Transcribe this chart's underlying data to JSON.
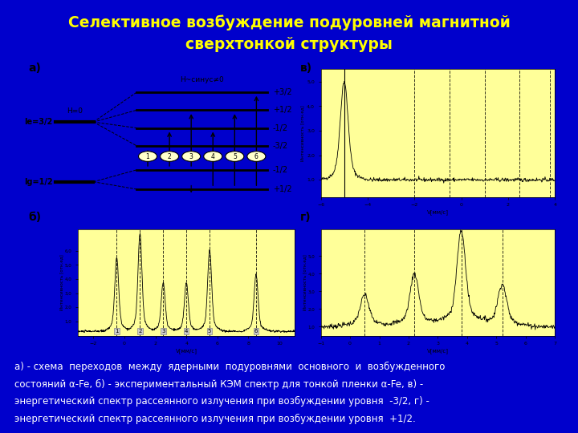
{
  "title_line1": "Селективное возбуждение подуровней магнитной",
  "title_line2": "сверхтонкой структуры",
  "title_color": "yellow",
  "bg_color": "#0000CC",
  "panel_bg": "#FFFF99",
  "caption_line1": "а) - схема  переходов  между  ядерными  подуровнями  основного  и  возбужденного",
  "caption_line2": "состояний α-Fe, б) - экспериментальный КЭМ спектр для тонкой пленки α-Fe, в) -",
  "caption_line3": "энергетический спектр рассеянного излучения при возбуждении уровня  -3/2, г) -",
  "caption_line4": "энергетический спектр рассеянного излучения при возбуждении уровня  +1/2.",
  "label_a": "а)",
  "label_b": "б)",
  "label_v": "в)",
  "label_g": "г)",
  "excited_levels": [
    "+3/2",
    "+1/2",
    "-1/2",
    "-3/2"
  ],
  "ground_levels": [
    "-1/2",
    "+1/2"
  ],
  "transition_numbers": [
    "1",
    "2",
    "3",
    "4",
    "5",
    "6"
  ]
}
